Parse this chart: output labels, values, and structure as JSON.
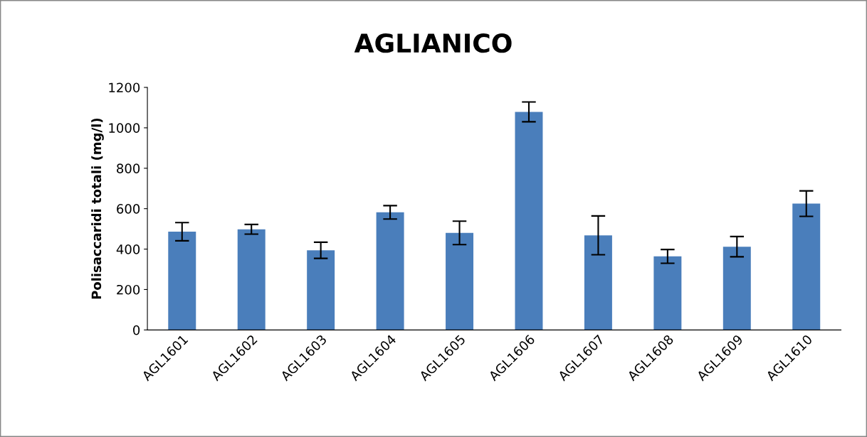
{
  "chart_data": {
    "type": "bar",
    "title": "AGLIANICO",
    "ylabel": "Polisaccaridi totali (mg/l)",
    "categories": [
      "AGL1601",
      "AGL1602",
      "AGL1603",
      "AGL1604",
      "AGL1605",
      "AGL1606",
      "AGL1607",
      "AGL1608",
      "AGL1609",
      "AGL1610"
    ],
    "values": [
      486,
      498,
      394,
      582,
      480,
      1079,
      468,
      364,
      412,
      625
    ],
    "errors": [
      45,
      24,
      40,
      33,
      58,
      49,
      96,
      34,
      50,
      63
    ],
    "color": "#4a7ebb",
    "ylim": [
      0,
      1200
    ],
    "yticks": [
      0,
      200,
      400,
      600,
      800,
      1000,
      1200
    ],
    "grid": false,
    "legend": false
  }
}
